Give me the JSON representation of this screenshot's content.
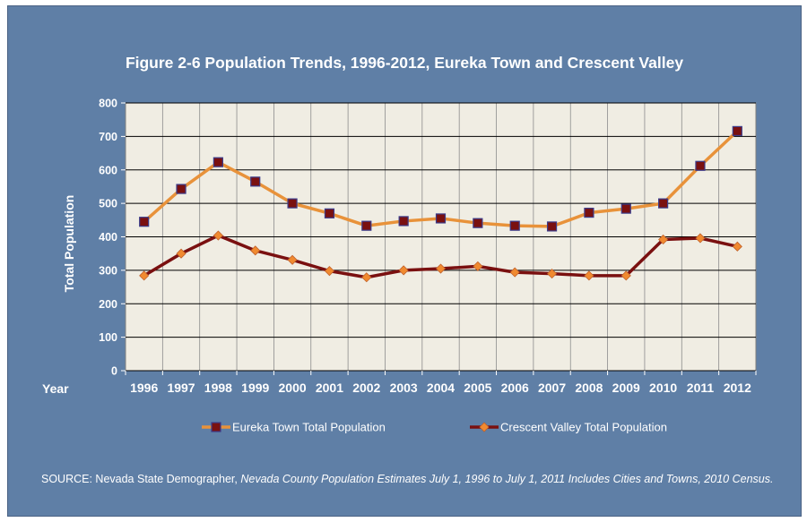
{
  "chart_data": {
    "type": "line",
    "title": "Figure 2-6 Population Trends, 1996-2012, Eureka Town and Crescent Valley",
    "xlabel": "Year",
    "ylabel": "Total Population",
    "ylim": [
      0,
      800
    ],
    "yticks": [
      "0",
      "100",
      "200",
      "300",
      "400",
      "500",
      "600",
      "700",
      "800"
    ],
    "categories": [
      "1996",
      "1997",
      "1998",
      "1999",
      "2000",
      "2001",
      "2002",
      "2003",
      "2004",
      "2005",
      "2006",
      "2007",
      "2008",
      "2009",
      "2010",
      "2011",
      "2012"
    ],
    "series": [
      {
        "name": "Eureka Town Total Population",
        "color": "#e8923a",
        "marker_color": "#7a1010",
        "marker": "square",
        "values": [
          445,
          543,
          623,
          565,
          500,
          470,
          433,
          447,
          455,
          441,
          433,
          431,
          472,
          484,
          500,
          612,
          716
        ]
      },
      {
        "name": "Crescent Valley Total Population",
        "color": "#7a1010",
        "marker_color": "#f08a30",
        "marker": "diamond",
        "values": [
          284,
          350,
          404,
          359,
          331,
          298,
          279,
          300,
          305,
          312,
          294,
          290,
          284,
          284,
          392,
          396,
          371
        ]
      }
    ],
    "grid": true,
    "legend": "bottom"
  },
  "source": {
    "prefix": "SOURCE: Nevada State Demographer,",
    "italic": "Nevada County Population Estimates July 1, 1996 to July 1, 2011 Includes Cities and Towns, 2010 Census."
  }
}
